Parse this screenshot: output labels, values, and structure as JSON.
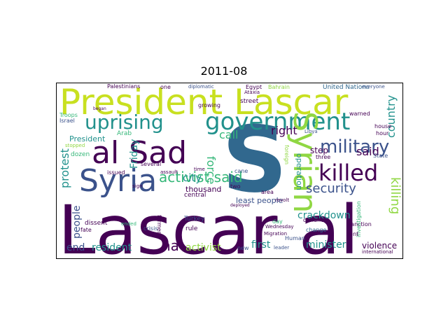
{
  "title": "2011-08",
  "palette": {
    "purple": "#440154",
    "indigo": "#3b528b",
    "blue": "#31688e",
    "teal": "#21918c",
    "green": "#35b779",
    "yellowgreen": "#90d743",
    "yellow": "#c8e020"
  },
  "words": {
    "lascar_al": "Lascar al",
    "president_lascar": "President Lascar",
    "s": "S",
    "al_sad": "al Sad",
    "syria": "Syria",
    "government": "government",
    "uprising": "uprising",
    "syrian": "Syrian",
    "killed": "killed",
    "military": "military",
    "activist_said": "activist said",
    "security": "security",
    "protest": "protest",
    "killing": "killing",
    "country": "country",
    "said": "said",
    "right": "right",
    "call": "call",
    "force": "force",
    "city": "city",
    "friday": "Friday",
    "people": "people",
    "president": "President",
    "crackdown": "crackdown",
    "resident": "resident",
    "activist": "activist",
    "ha": "ha",
    "end": "end",
    "first": "first",
    "minister": "minister",
    "violence": "violence",
    "least_people": "least people",
    "thousand": "thousand",
    "step": "step",
    "operation": "operation",
    "united_nations": "United Nations",
    "palestinians": "Palestinians",
    "egypt": "Egypt",
    "bahrain": "Bahrain",
    "street": "street",
    "arab": "Arab",
    "israel": "Israel",
    "troops": "Troops",
    "dozen": "dozen",
    "issued": "issued",
    "several": "several",
    "central": "central",
    "turkey": "Turkey",
    "rule": "rule",
    "day": "day",
    "human": "Human",
    "leader": "leader",
    "new": "new",
    "crisis": "crisis",
    "dissent": "dissent",
    "fate": "fate",
    "three": "three",
    "house": "house",
    "hour": "hour",
    "state": "State",
    "warned": "warned",
    "libya": "Libya",
    "area": "area",
    "two": "two",
    "cane": "cane",
    "sanction": "sanction",
    "change": "change",
    "defiance": "defiance",
    "investigation": "investigation",
    "sent": "sent",
    "international": "international",
    "everyone": "everyone",
    "diplomatic": "diplomatic",
    "one": "one",
    "growing": "growing",
    "ataxia": "Ataxia",
    "migration": "Migration",
    "wednesday": "Wednesday",
    "former": "former",
    "isolation": "isolation",
    "stopped": "stopped",
    "assault": "assault",
    "time": "time",
    "revolt": "revolt",
    "foreign": "foreign",
    "ended": "ended",
    "began": "began",
    "sign": "sign",
    "deployed": "deployed"
  }
}
